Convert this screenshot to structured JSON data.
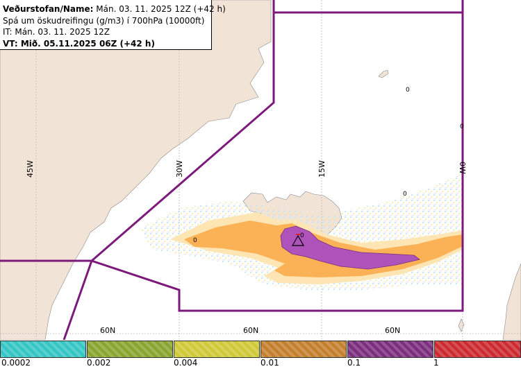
{
  "info": {
    "line1_label": "Veðurstofan/Name:",
    "line1_value": "Mán. 03. 11. 2025 12Z (+42 h)",
    "line2": "Spá um öskudreifingu (g/m3) í 700hPa (10000ft)",
    "line3": "IT: Mán. 03. 11. 2025 12Z",
    "line4_label": "VT:",
    "line4_value": "Mið. 05.11.2025 06Z (+42 h)"
  },
  "grid": {
    "lon_labels": [
      "45W",
      "30W",
      "15W",
      "0W"
    ],
    "lat_labels": [
      "60N",
      "60N",
      "60N"
    ]
  },
  "contour_labels": [
    "0",
    "0",
    "0",
    "0",
    "0"
  ],
  "legend": {
    "ticks": [
      "0.0002",
      "0.002",
      "0.004",
      "0.01",
      "0.1",
      "1"
    ],
    "colors": [
      "#34c6c4",
      "#8aa52f",
      "#cfc937",
      "#c47f2d",
      "#7b2d7e",
      "#cc2a2e"
    ]
  },
  "colors": {
    "land": "#f2e3d7",
    "ocean": "#ffffff",
    "domain_outline": "#7b1a7b",
    "ash_low": "#fde6b4",
    "ash_mid": "#fbb257",
    "ash_high": "#ad53b9"
  },
  "icons": [
    "volcano-icon"
  ]
}
